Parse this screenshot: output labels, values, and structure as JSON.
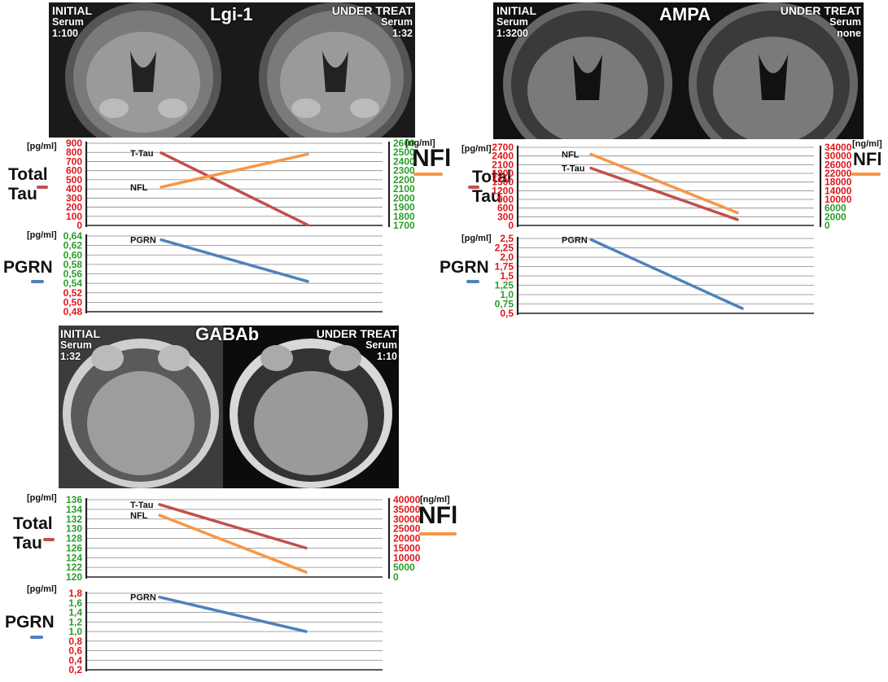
{
  "panels": {
    "lgi": {
      "title": "Lgi-1",
      "initial": {
        "line1": "INITIAL",
        "line2": "Serum",
        "line3": "1:100"
      },
      "treat": {
        "line1": "UNDER TREAT",
        "line2": "Serum",
        "line3": "1:32"
      },
      "tau_label": {
        "l1": "Total",
        "l2": "Tau"
      },
      "nfl_label": "NFl",
      "pgrn_label": "PGRN",
      "unit_pg": "[pg/ml]",
      "unit_ng": "[ng/ml]",
      "unit_pg2": "[pg/ml]"
    },
    "ampa": {
      "title": "AMPA",
      "initial": {
        "line1": "INITIAL",
        "line2": "Serum",
        "line3": "1:3200"
      },
      "treat": {
        "line1": "UNDER TREAT",
        "line2": "Serum",
        "line3": "none"
      },
      "tau_label": {
        "l1": "Total",
        "l2": "Tau"
      },
      "nfl_label": "NFl",
      "pgrn_label": "PGRN",
      "unit_pg": "[pg/ml]",
      "unit_ng": "[ng/ml]",
      "unit_pg2": "[pg/ml]"
    },
    "gaba": {
      "title": "GABAb",
      "initial": {
        "line1": "INITIAL",
        "line2": "Serum",
        "line3": "1:32"
      },
      "treat": {
        "line1": "UNDER TREAT",
        "line2": "Serum",
        "line3": "1:10"
      },
      "tau_label": {
        "l1": "Total",
        "l2": "Tau"
      },
      "nfl_label": "NFl",
      "pgrn_label": "PGRN",
      "unit_pg": "[pg/ml]",
      "unit_ng": "[ng/ml]",
      "unit_pg2": "[pg/ml]"
    }
  },
  "colors": {
    "tau": "#c0504d",
    "nfl": "#f79646",
    "pgrn": "#4f81bd",
    "red": "#e0161b",
    "green": "#2a9d2a",
    "grid": "#888888"
  },
  "chart_data": [
    {
      "id": "lgi_tau_nfl",
      "type": "line",
      "left_axis": {
        "ylim": [
          0,
          900
        ],
        "ticks": [
          "0",
          "100",
          "200",
          "300",
          "400",
          "500",
          "600",
          "700",
          "800",
          "900"
        ],
        "color": "red"
      },
      "right_axis": {
        "ylim": [
          1700,
          2600
        ],
        "ticks": [
          "1700",
          "1800",
          "1900",
          "2000",
          "2100",
          "2200",
          "2300",
          "2400",
          "2500",
          "2600"
        ],
        "color": "green"
      },
      "series": [
        {
          "name": "T-Tau",
          "axis": "left",
          "color": "tau",
          "x": [
            0,
            1
          ],
          "values": [
            795,
            5
          ]
        },
        {
          "name": "NFL",
          "axis": "right",
          "color": "nfl",
          "x": [
            0,
            1
          ],
          "values": [
            2120,
            2480
          ]
        }
      ]
    },
    {
      "id": "lgi_pgrn",
      "type": "line",
      "left_axis": {
        "ylim": [
          0.48,
          0.64
        ],
        "ticks": [
          "0,48",
          "0,50",
          "0,52",
          "0,54",
          "0,56",
          "0,58",
          "0,60",
          "0,62",
          "0,64"
        ],
        "colors": [
          "red",
          "red",
          "red",
          "green",
          "green",
          "green",
          "green",
          "green",
          "green"
        ]
      },
      "series": [
        {
          "name": "PGRN",
          "axis": "left",
          "color": "pgrn",
          "x": [
            0,
            1
          ],
          "values": [
            0.632,
            0.544
          ]
        }
      ]
    },
    {
      "id": "ampa_tau_nfl",
      "type": "line",
      "left_axis": {
        "ylim": [
          0,
          2700
        ],
        "ticks": [
          "0",
          "300",
          "600",
          "900",
          "1200",
          "1500",
          "1800",
          "2100",
          "2400",
          "2700"
        ],
        "color": "red"
      },
      "right_axis": {
        "ylim": [
          0,
          34000
        ],
        "ticks": [
          "0",
          "2000",
          "6000",
          "10000",
          "14000",
          "18000",
          "22000",
          "26000",
          "30000",
          "34000"
        ],
        "colors": [
          "green",
          "green",
          "green",
          "red",
          "red",
          "red",
          "red",
          "red",
          "red",
          "red"
        ]
      },
      "series": [
        {
          "name": "NFL",
          "axis": "right",
          "color": "nfl",
          "x": [
            0,
            1
          ],
          "values": [
            31000,
            5500
          ]
        },
        {
          "name": "T-Tau",
          "axis": "left",
          "color": "tau",
          "x": [
            0,
            1
          ],
          "values": [
            1980,
            200
          ]
        }
      ]
    },
    {
      "id": "ampa_pgrn",
      "type": "line",
      "left_axis": {
        "ylim": [
          0.5,
          2.5
        ],
        "ticks": [
          "0,5",
          "0,75",
          "1,0",
          "1,25",
          "1,5",
          "1,75",
          "2,0",
          "2,25",
          "2,5"
        ],
        "colors": [
          "red",
          "green",
          "green",
          "green",
          "red",
          "red",
          "red",
          "red",
          "red"
        ]
      },
      "series": [
        {
          "name": "PGRN",
          "axis": "left",
          "color": "pgrn",
          "x": [
            0,
            1
          ],
          "values": [
            2.47,
            0.63
          ]
        }
      ]
    },
    {
      "id": "gaba_tau_nfl",
      "type": "line",
      "left_axis": {
        "ylim": [
          120,
          136
        ],
        "ticks": [
          "120",
          "122",
          "124",
          "126",
          "128",
          "130",
          "132",
          "134",
          "136"
        ],
        "color": "green"
      },
      "right_axis": {
        "ylim": [
          0,
          40000
        ],
        "ticks": [
          "0",
          "5000",
          "10000",
          "15000",
          "20000",
          "25000",
          "30000",
          "35000",
          "40000"
        ],
        "colors": [
          "green",
          "green",
          "red",
          "red",
          "red",
          "red",
          "red",
          "red",
          "red"
        ]
      },
      "series": [
        {
          "name": "T-Tau",
          "axis": "left",
          "color": "tau",
          "x": [
            0,
            1
          ],
          "values": [
            135,
            126
          ]
        },
        {
          "name": "NFL",
          "axis": "left",
          "color": "nfl",
          "x": [
            0,
            1
          ],
          "values": [
            132.8,
            121
          ]
        }
      ]
    },
    {
      "id": "gaba_pgrn",
      "type": "line",
      "left_axis": {
        "ylim": [
          0.2,
          1.8
        ],
        "ticks": [
          "0,2",
          "0,4",
          "0,6",
          "0,8",
          "1,0",
          "1,2",
          "1,4",
          "1,6",
          "1,8"
        ],
        "colors": [
          "red",
          "red",
          "red",
          "red",
          "green",
          "green",
          "green",
          "green",
          "red"
        ]
      },
      "series": [
        {
          "name": "PGRN",
          "axis": "left",
          "color": "pgrn",
          "x": [
            0,
            1
          ],
          "values": [
            1.72,
            1.0
          ]
        }
      ]
    }
  ]
}
